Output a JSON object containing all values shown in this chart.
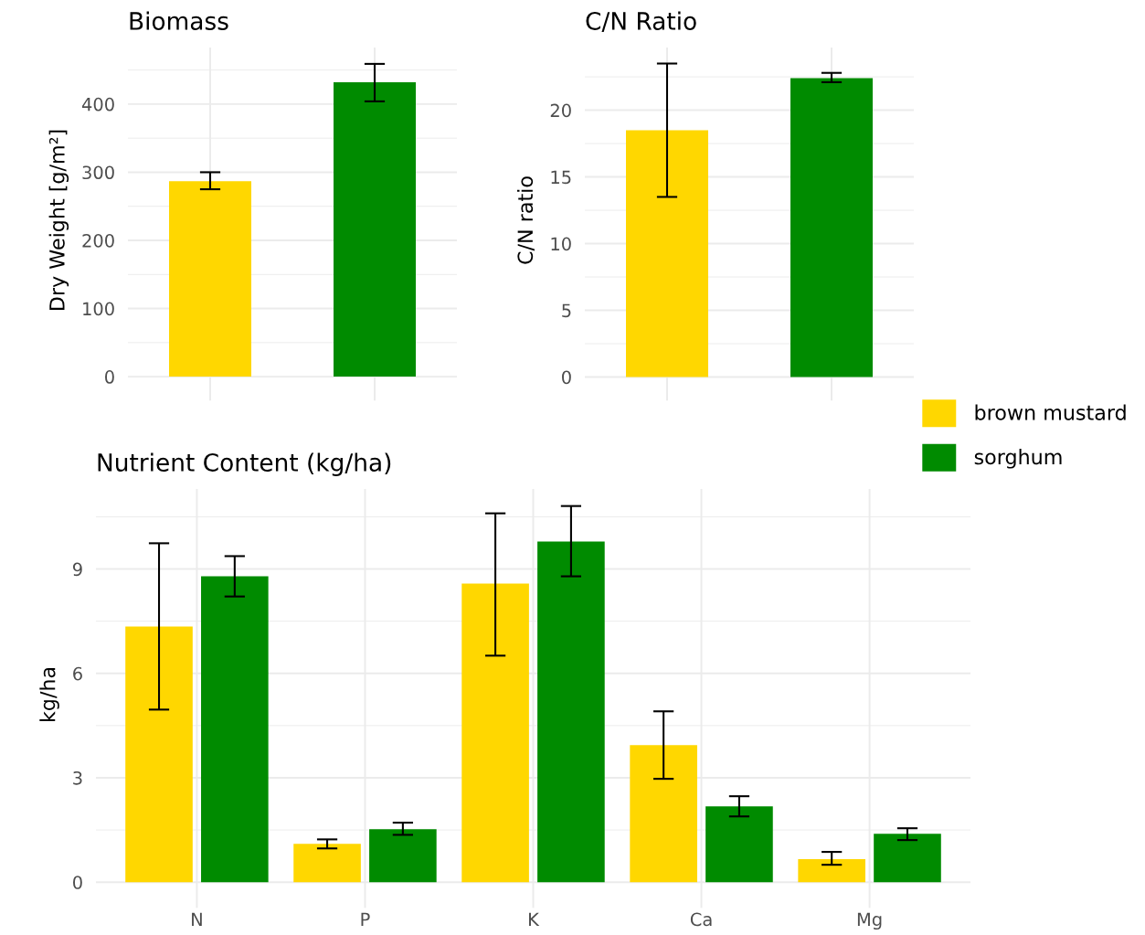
{
  "chart_data": [
    {
      "type": "bar",
      "title": "Biomass",
      "ylabel": "Dry Weight [g/m²]",
      "categories": [
        null,
        null
      ],
      "values": [
        287,
        432
      ],
      "colors": [
        "#ffd700",
        "#008b00"
      ],
      "errors": [
        [
          275,
          300
        ],
        [
          404,
          459
        ]
      ],
      "ylim": [
        -24,
        483
      ],
      "yticks": [
        0,
        100,
        200,
        300,
        400
      ],
      "grid": true
    },
    {
      "type": "bar",
      "title": "C/N Ratio",
      "ylabel": "C/N ratio",
      "categories": [
        null,
        null
      ],
      "values": [
        18.5,
        22.4
      ],
      "colors": [
        "#ffd700",
        "#008b00"
      ],
      "errors": [
        [
          13.5,
          23.5
        ],
        [
          22.1,
          22.8
        ]
      ],
      "ylim": [
        -1.2,
        24.7
      ],
      "yticks": [
        0,
        5,
        10,
        15,
        20
      ],
      "grid": true
    },
    {
      "type": "bar",
      "title": "Nutrient Content (kg/ha)",
      "ylabel": "kg/ha",
      "categories": [
        "N",
        "P",
        "K",
        "Ca",
        "Mg"
      ],
      "series": [
        {
          "name": "brown mustard",
          "color": "#ffd700",
          "values": [
            7.35,
            1.1,
            8.58,
            3.94,
            0.66
          ],
          "errors": [
            [
              4.96,
              9.74
            ],
            [
              0.97,
              1.23
            ],
            [
              6.51,
              10.6
            ],
            [
              2.97,
              4.91
            ],
            [
              0.5,
              0.87
            ]
          ]
        },
        {
          "name": "sorghum",
          "color": "#008b00",
          "values": [
            8.79,
            1.52,
            9.79,
            2.18,
            1.39
          ],
          "errors": [
            [
              8.21,
              9.37
            ],
            [
              1.36,
              1.71
            ],
            [
              8.79,
              10.81
            ],
            [
              1.89,
              2.47
            ],
            [
              1.21,
              1.55
            ]
          ]
        }
      ],
      "ylim": [
        -0.52,
        11.3
      ],
      "yticks": [
        0,
        3,
        6,
        9
      ],
      "grid": true,
      "legend": "top right"
    }
  ]
}
